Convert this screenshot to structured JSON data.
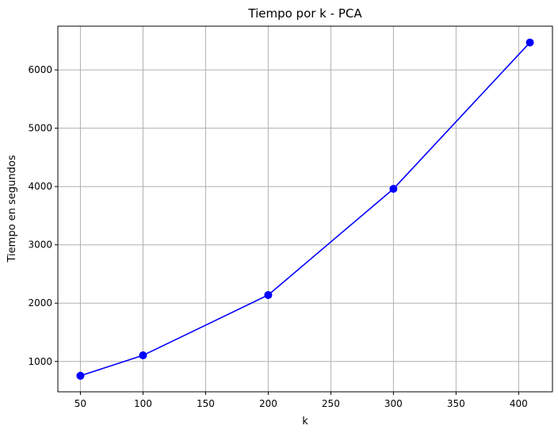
{
  "chart_data": {
    "type": "line",
    "title": "Tiempo por k - PCA",
    "xlabel": "k",
    "ylabel": "Tiempo en segundos",
    "x": [
      50,
      100,
      200,
      300,
      409
    ],
    "series": [
      {
        "values": [
          755,
          1105,
          2140,
          3960,
          6470
        ],
        "color": "#0000ff",
        "marker": "circle"
      }
    ],
    "xlim": [
      32,
      427
    ],
    "ylim": [
      480,
      6750
    ],
    "xticks": [
      50,
      100,
      150,
      200,
      250,
      300,
      350,
      400
    ],
    "yticks": [
      1000,
      2000,
      3000,
      4000,
      5000,
      6000
    ],
    "grid": true,
    "grid_color": "#b0b0b0",
    "legend": "none"
  }
}
